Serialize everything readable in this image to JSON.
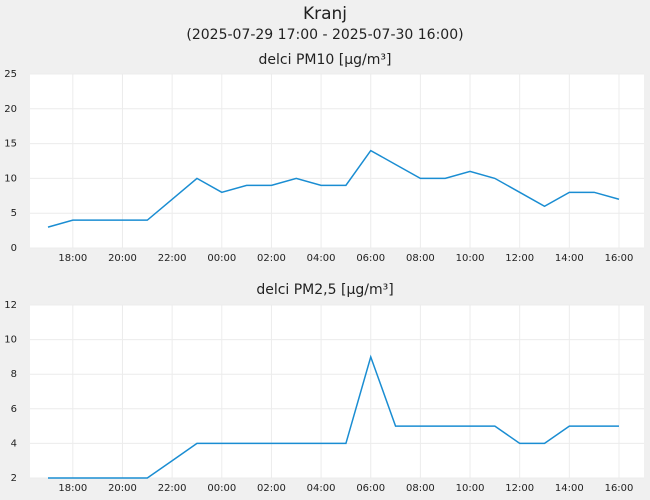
{
  "title": "Kranj",
  "subtitle": "(2025-07-29 17:00 - 2025-07-30 16:00)",
  "chart_data": [
    {
      "type": "line",
      "title": "delci PM10 [µg/m³]",
      "categories": [
        null,
        "18:00",
        null,
        "20:00",
        null,
        "22:00",
        null,
        "00:00",
        null,
        "02:00",
        null,
        "04:00",
        null,
        "06:00",
        null,
        "08:00",
        null,
        "10:00",
        null,
        "12:00",
        null,
        "14:00",
        null,
        "16:00"
      ],
      "values": [
        3,
        4,
        4,
        4,
        4,
        7,
        10,
        8,
        9,
        9,
        10,
        9,
        9,
        14,
        12,
        10,
        10,
        11,
        10,
        8,
        6,
        8,
        8,
        7
      ],
      "color": "#1a8dd2",
      "ylim": [
        0,
        25
      ],
      "yticks": [
        0,
        5,
        10,
        15,
        20,
        25
      ],
      "grid": true
    },
    {
      "type": "line",
      "title": "delci PM2,5 [µg/m³]",
      "categories": [
        null,
        "18:00",
        null,
        "20:00",
        null,
        "22:00",
        null,
        "00:00",
        null,
        "02:00",
        null,
        "04:00",
        null,
        "06:00",
        null,
        "08:00",
        null,
        "10:00",
        null,
        "12:00",
        null,
        "14:00",
        null,
        "16:00"
      ],
      "values": [
        2,
        2,
        2,
        2,
        2,
        3,
        4,
        4,
        4,
        4,
        4,
        4,
        4,
        9,
        5,
        5,
        5,
        5,
        5,
        4,
        4,
        5,
        5,
        5
      ],
      "color": "#1a8dd2",
      "ylim": [
        2,
        12
      ],
      "yticks": [
        2,
        4,
        6,
        8,
        10,
        12
      ],
      "grid": true
    }
  ]
}
